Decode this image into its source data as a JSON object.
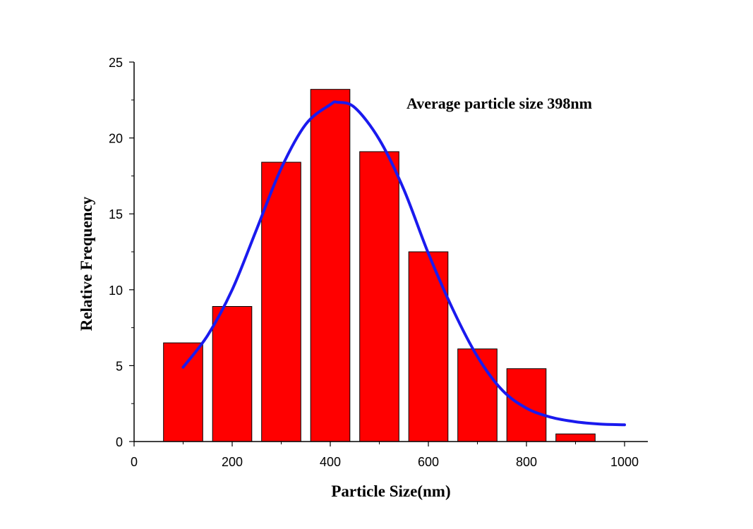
{
  "chart_data": {
    "type": "bar",
    "title": "",
    "xlabel": "Particle Size(nm)",
    "ylabel": "Relative Frequency",
    "xlim": [
      0,
      1000
    ],
    "ylim": [
      0,
      25
    ],
    "x_ticks": [
      "0",
      "200",
      "400",
      "600",
      "800",
      "1000"
    ],
    "y_ticks": [
      "0",
      "5",
      "10",
      "15",
      "20",
      "25"
    ],
    "grid": false,
    "bars": {
      "bin_centers": [
        100,
        200,
        300,
        400,
        500,
        600,
        700,
        800,
        900
      ],
      "bin_width": 80,
      "values": [
        6.5,
        8.9,
        18.4,
        23.2,
        19.1,
        12.5,
        6.1,
        4.8,
        0.5
      ],
      "color": "#ff0000"
    },
    "fit_curve": {
      "type": "line",
      "x": [
        100,
        150,
        200,
        250,
        300,
        350,
        400,
        415,
        450,
        500,
        550,
        600,
        650,
        700,
        750,
        800,
        850,
        900,
        950,
        1000
      ],
      "values": [
        4.9,
        7.0,
        10.0,
        14.0,
        18.0,
        20.9,
        22.2,
        22.35,
        22.0,
        19.9,
        16.6,
        12.4,
        8.7,
        5.6,
        3.4,
        2.2,
        1.6,
        1.3,
        1.15,
        1.1
      ],
      "color": "#1a1aee"
    },
    "annotations": [
      "Average particle size 398nm"
    ]
  }
}
